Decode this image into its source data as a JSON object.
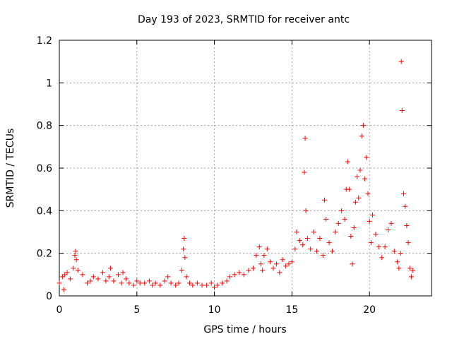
{
  "chart_data": {
    "type": "scatter",
    "title": "Day 193 of 2023, SRMTID for receiver antc",
    "xlabel": "GPS time / hours",
    "ylabel": "SRMTID / TECUs",
    "xlim": [
      0,
      24
    ],
    "ylim": [
      0,
      1.2
    ],
    "xticks": [
      0,
      5,
      10,
      15,
      20
    ],
    "xtick_labels": [
      "0",
      "5",
      "10",
      "15",
      "20"
    ],
    "yticks": [
      0,
      0.2,
      0.4,
      0.6,
      0.8,
      1.0,
      1.2
    ],
    "ytick_labels": [
      "0",
      "0.2",
      "0.4",
      "0.6",
      "0.8",
      "1",
      "1.2"
    ],
    "grid": true,
    "marker": "+",
    "color": "#ff0000",
    "series": [
      {
        "name": "SRMTID",
        "x": [
          0.0,
          0.2,
          0.3,
          0.35,
          0.5,
          0.7,
          0.9,
          1.0,
          1.05,
          1.1,
          1.2,
          1.5,
          1.8,
          2.0,
          2.2,
          2.5,
          2.8,
          3.0,
          3.2,
          3.3,
          3.5,
          3.8,
          4.0,
          4.1,
          4.3,
          4.5,
          4.8,
          5.0,
          5.2,
          5.5,
          5.8,
          6.0,
          6.2,
          6.5,
          6.8,
          7.0,
          7.2,
          7.5,
          7.7,
          7.9,
          8.0,
          8.05,
          8.1,
          8.2,
          8.4,
          8.6,
          8.9,
          9.2,
          9.5,
          9.8,
          10.0,
          10.2,
          10.5,
          10.8,
          11.0,
          11.3,
          11.6,
          11.9,
          12.2,
          12.5,
          12.7,
          12.9,
          13.0,
          13.1,
          13.2,
          13.4,
          13.6,
          13.8,
          14.0,
          14.2,
          14.4,
          14.6,
          14.8,
          15.0,
          15.2,
          15.3,
          15.5,
          15.7,
          15.8,
          15.85,
          15.9,
          16.0,
          16.2,
          16.4,
          16.6,
          16.8,
          17.0,
          17.1,
          17.2,
          17.4,
          17.6,
          17.8,
          18.0,
          18.2,
          18.4,
          18.5,
          18.6,
          18.7,
          18.8,
          18.9,
          19.0,
          19.1,
          19.2,
          19.3,
          19.4,
          19.5,
          19.6,
          19.7,
          19.8,
          19.9,
          20.0,
          20.1,
          20.2,
          20.4,
          20.6,
          20.8,
          21.0,
          21.2,
          21.4,
          21.6,
          21.8,
          21.9,
          22.0,
          22.05,
          22.1,
          22.2,
          22.3,
          22.4,
          22.5,
          22.6,
          22.7,
          22.8
        ],
        "y": [
          0.06,
          0.09,
          0.03,
          0.1,
          0.11,
          0.08,
          0.13,
          0.19,
          0.21,
          0.17,
          0.12,
          0.1,
          0.06,
          0.07,
          0.09,
          0.08,
          0.11,
          0.07,
          0.09,
          0.13,
          0.07,
          0.1,
          0.06,
          0.11,
          0.08,
          0.06,
          0.05,
          0.07,
          0.06,
          0.06,
          0.07,
          0.05,
          0.06,
          0.05,
          0.07,
          0.09,
          0.06,
          0.05,
          0.06,
          0.12,
          0.22,
          0.27,
          0.18,
          0.09,
          0.06,
          0.05,
          0.06,
          0.05,
          0.05,
          0.06,
          0.04,
          0.05,
          0.06,
          0.07,
          0.09,
          0.1,
          0.11,
          0.1,
          0.12,
          0.13,
          0.19,
          0.23,
          0.15,
          0.12,
          0.19,
          0.22,
          0.16,
          0.13,
          0.15,
          0.11,
          0.17,
          0.14,
          0.15,
          0.16,
          0.22,
          0.3,
          0.26,
          0.24,
          0.58,
          0.74,
          0.4,
          0.27,
          0.22,
          0.3,
          0.21,
          0.27,
          0.19,
          0.45,
          0.36,
          0.25,
          0.21,
          0.3,
          0.34,
          0.4,
          0.36,
          0.5,
          0.63,
          0.5,
          0.28,
          0.15,
          0.32,
          0.44,
          0.56,
          0.46,
          0.59,
          0.75,
          0.8,
          0.55,
          0.65,
          0.48,
          0.35,
          0.25,
          0.38,
          0.29,
          0.23,
          0.18,
          0.23,
          0.31,
          0.34,
          0.21,
          0.16,
          0.13,
          0.2,
          1.1,
          0.87,
          0.48,
          0.42,
          0.33,
          0.25,
          0.13,
          0.09,
          0.12
        ]
      }
    ]
  }
}
